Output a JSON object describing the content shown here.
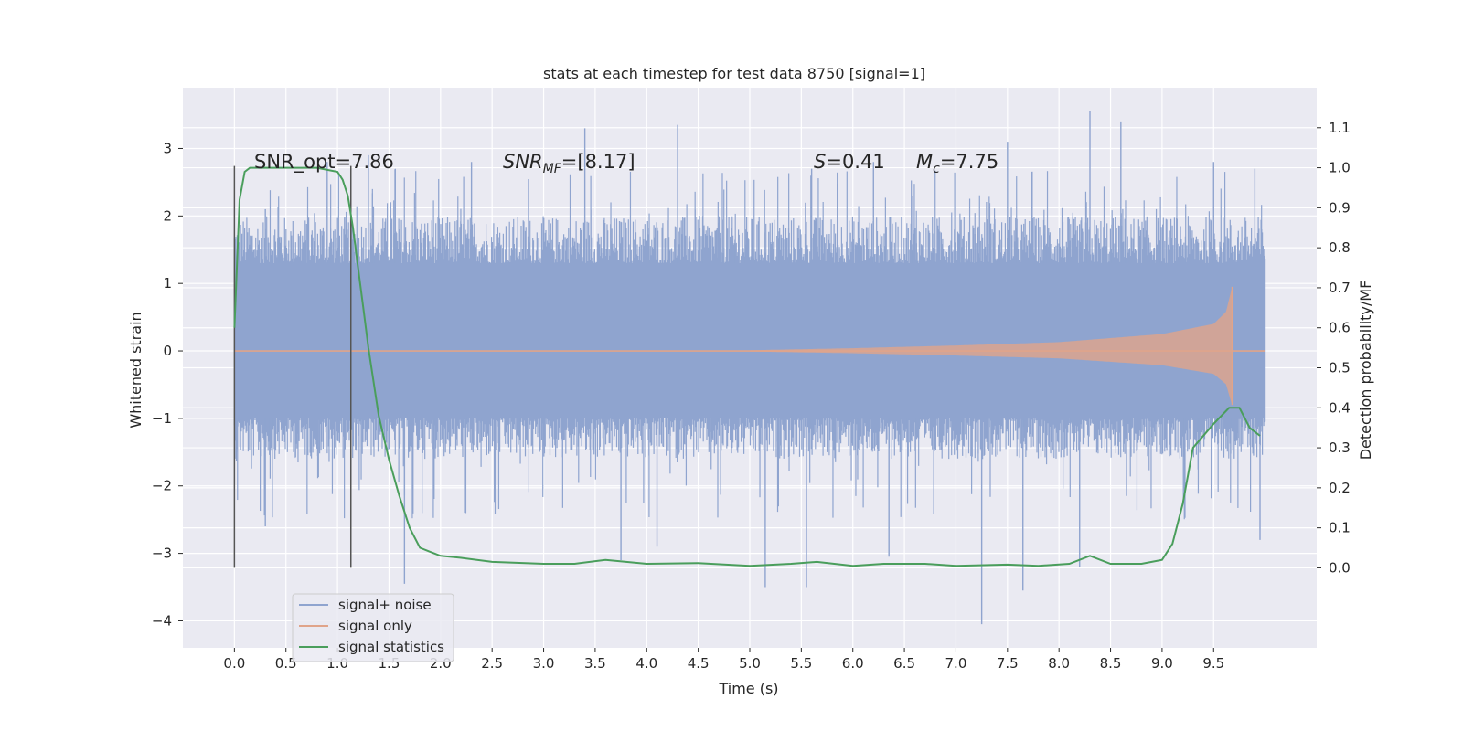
{
  "chart_data": {
    "type": "line",
    "title": "stats at each timestep for test data 8750 [signal=1]",
    "xlabel": "Time (s)",
    "ylabel": "Whitened strain",
    "ylabel_right": "Detection probability/MF",
    "xlim": [
      -0.5,
      10.5
    ],
    "ylim": [
      -4.4,
      3.9
    ],
    "ylim_right": [
      -0.2,
      1.2
    ],
    "x_ticks": [
      0.0,
      0.5,
      1.0,
      1.5,
      2.0,
      2.5,
      3.0,
      3.5,
      4.0,
      4.5,
      5.0,
      5.5,
      6.0,
      6.5,
      7.0,
      7.5,
      8.0,
      8.5,
      9.0,
      9.5
    ],
    "x_tick_labels": [
      "0.0",
      "0.5",
      "1.0",
      "1.5",
      "2.0",
      "2.5",
      "3.0",
      "3.5",
      "4.0",
      "4.5",
      "5.0",
      "5.5",
      "6.0",
      "6.5",
      "7.0",
      "7.5",
      "8.0",
      "8.5",
      "9.0",
      "9.5"
    ],
    "y_ticks": [
      3,
      2,
      1,
      0,
      -1,
      -2,
      -3,
      -4
    ],
    "y_tick_labels": [
      "3",
      "2",
      "1",
      "0",
      "−1",
      "−2",
      "−3",
      "−4"
    ],
    "y_ticks_right": [
      1.1,
      1.0,
      0.9,
      0.8,
      0.7,
      0.6,
      0.5,
      0.4,
      0.3,
      0.2,
      0.1,
      0.0
    ],
    "y_tick_labels_right": [
      "1.1",
      "1.0",
      "0.9",
      "0.8",
      "0.7",
      "0.6",
      "0.5",
      "0.4",
      "0.3",
      "0.2",
      "0.1",
      "0.0"
    ],
    "grid": true,
    "legend_position": "lower-left",
    "annotations": {
      "snr_opt": "SNR_opt=7.86",
      "snr_mf_main": "SNR",
      "snr_mf_sub": "MF",
      "snr_mf_rest": "=[8.17]",
      "s_main": "S",
      "s_rest": "=0.41",
      "mc_main": "M",
      "mc_sub": "c",
      "mc_rest": "=7.75"
    },
    "vertical_lines": [
      0.0,
      1.13
    ],
    "series": [
      {
        "name": "signal+ noise",
        "color": "#8fa4cf",
        "axis": "left",
        "band": {
          "x_start": 0.0,
          "x_end": 10.0,
          "core_lower": -1.0,
          "core_upper": 1.3,
          "typical_lower": -1.6,
          "typical_upper": 2.0,
          "spike_highs": [
            [
              0.3,
              2.1
            ],
            [
              0.9,
              2.8
            ],
            [
              1.3,
              2.9
            ],
            [
              2.3,
              2.8
            ],
            [
              3.4,
              3.3
            ],
            [
              4.3,
              3.35
            ],
            [
              5.6,
              2.7
            ],
            [
              6.2,
              2.8
            ],
            [
              7.5,
              3.1
            ],
            [
              8.3,
              3.55
            ],
            [
              8.6,
              3.4
            ],
            [
              9.5,
              2.8
            ],
            [
              9.9,
              2.7
            ]
          ],
          "spike_lows": [
            [
              0.3,
              -2.6
            ],
            [
              1.65,
              -3.45
            ],
            [
              3.75,
              -3.1
            ],
            [
              4.1,
              -2.9
            ],
            [
              5.15,
              -3.5
            ],
            [
              5.55,
              -3.5
            ],
            [
              6.35,
              -3.05
            ],
            [
              7.25,
              -4.05
            ],
            [
              7.65,
              -3.55
            ],
            [
              8.2,
              -3.2
            ],
            [
              9.95,
              -2.8
            ]
          ]
        }
      },
      {
        "name": "signal only",
        "color": "#e0a48a",
        "axis": "left",
        "chirp": {
          "x_start": 0.0,
          "x_end": 9.68,
          "x_tail_end": 10.0,
          "amplitude_pairs": [
            [
              5.0,
              0.01
            ],
            [
              6.0,
              0.04
            ],
            [
              7.0,
              0.08
            ],
            [
              8.0,
              0.13
            ],
            [
              9.0,
              0.25
            ],
            [
              9.5,
              0.4
            ],
            [
              9.62,
              0.58
            ],
            [
              9.68,
              0.95
            ]
          ]
        }
      },
      {
        "name": "signal statistics",
        "color": "#4a9e5c",
        "axis": "right",
        "x": [
          0.0,
          0.05,
          0.1,
          0.15,
          0.2,
          0.3,
          0.4,
          0.6,
          0.8,
          1.0,
          1.05,
          1.1,
          1.15,
          1.2,
          1.25,
          1.3,
          1.4,
          1.5,
          1.6,
          1.7,
          1.8,
          1.9,
          2.0,
          2.2,
          2.5,
          3.0,
          3.3,
          3.6,
          4.0,
          4.5,
          5.0,
          5.4,
          5.65,
          6.0,
          6.3,
          6.7,
          7.0,
          7.5,
          7.8,
          8.1,
          8.3,
          8.5,
          8.8,
          9.0,
          9.1,
          9.2,
          9.3,
          9.5,
          9.65,
          9.75,
          9.85,
          9.95
        ],
        "y": [
          0.6,
          0.92,
          0.99,
          1.0,
          1.0,
          1.0,
          1.0,
          1.0,
          1.0,
          0.99,
          0.97,
          0.93,
          0.85,
          0.75,
          0.65,
          0.55,
          0.38,
          0.27,
          0.18,
          0.1,
          0.05,
          0.04,
          0.03,
          0.025,
          0.015,
          0.01,
          0.01,
          0.02,
          0.01,
          0.012,
          0.005,
          0.01,
          0.015,
          0.005,
          0.01,
          0.01,
          0.005,
          0.008,
          0.005,
          0.01,
          0.03,
          0.01,
          0.01,
          0.02,
          0.06,
          0.16,
          0.3,
          0.36,
          0.4,
          0.4,
          0.35,
          0.33
        ]
      }
    ]
  }
}
